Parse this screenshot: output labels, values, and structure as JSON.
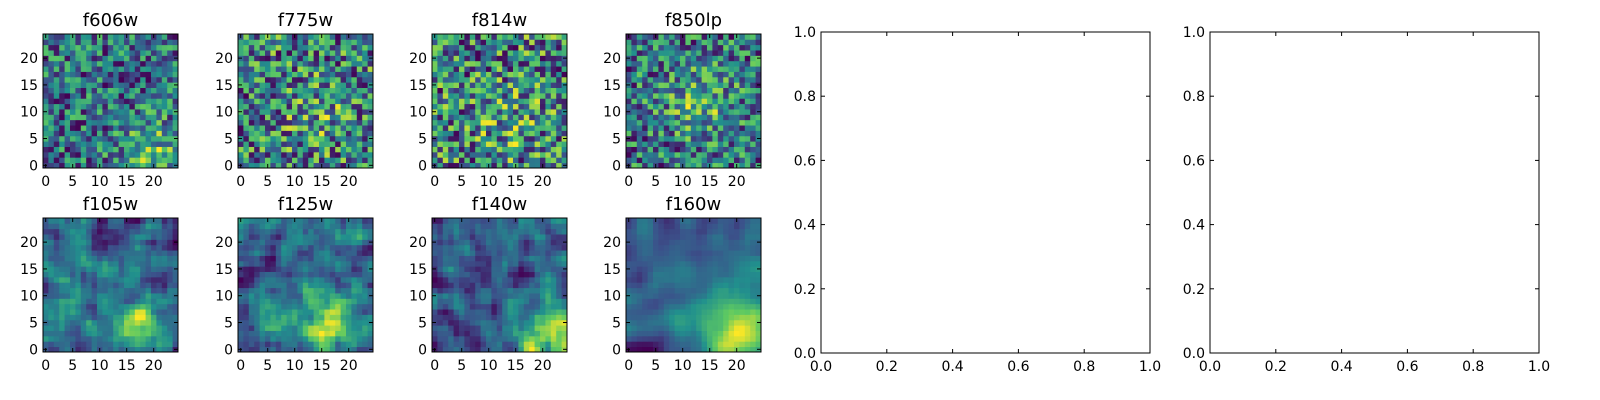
{
  "chart_data": [
    {
      "type": "heatmap",
      "title": "f606w",
      "grid_size": 25,
      "xticks": [
        0,
        5,
        10,
        15,
        20
      ],
      "yticks": [
        0,
        5,
        10,
        15,
        20
      ],
      "xlim": [
        -0.5,
        24.5
      ],
      "ylim": [
        -0.5,
        24.5
      ],
      "smoothing": 0,
      "hotspot": [
        20,
        2
      ],
      "hot_strength": 0.35,
      "seed": 11
    },
    {
      "type": "heatmap",
      "title": "f775w",
      "grid_size": 25,
      "xticks": [
        0,
        5,
        10,
        15,
        20
      ],
      "yticks": [
        0,
        5,
        10,
        15,
        20
      ],
      "xlim": [
        -0.5,
        24.5
      ],
      "ylim": [
        -0.5,
        24.5
      ],
      "smoothing": 0,
      "hotspot": [
        14,
        10
      ],
      "hot_strength": 0.15,
      "seed": 23
    },
    {
      "type": "heatmap",
      "title": "f814w",
      "grid_size": 25,
      "xticks": [
        0,
        5,
        10,
        15,
        20
      ],
      "yticks": [
        0,
        5,
        10,
        15,
        20
      ],
      "xlim": [
        -0.5,
        24.5
      ],
      "ylim": [
        -0.5,
        24.5
      ],
      "smoothing": 0,
      "hotspot": [
        14,
        8
      ],
      "hot_strength": 0.15,
      "seed": 37
    },
    {
      "type": "heatmap",
      "title": "f850lp",
      "grid_size": 25,
      "xticks": [
        0,
        5,
        10,
        15,
        20
      ],
      "yticks": [
        0,
        5,
        10,
        15,
        20
      ],
      "xlim": [
        -0.5,
        24.5
      ],
      "ylim": [
        -0.5,
        24.5
      ],
      "smoothing": 0,
      "hotspot": [
        13,
        12
      ],
      "hot_strength": 0.3,
      "seed": 41
    },
    {
      "type": "heatmap",
      "title": "f105w",
      "grid_size": 25,
      "xticks": [
        0,
        5,
        10,
        15,
        20
      ],
      "yticks": [
        0,
        5,
        10,
        15,
        20
      ],
      "xlim": [
        -0.5,
        24.5
      ],
      "ylim": [
        -0.5,
        24.5
      ],
      "smoothing": 1,
      "hotspot": [
        18,
        3
      ],
      "hot_strength": 0.45,
      "seed": 53
    },
    {
      "type": "heatmap",
      "title": "f125w",
      "grid_size": 25,
      "xticks": [
        0,
        5,
        10,
        15,
        20
      ],
      "yticks": [
        0,
        5,
        10,
        15,
        20
      ],
      "xlim": [
        -0.5,
        24.5
      ],
      "ylim": [
        -0.5,
        24.5
      ],
      "smoothing": 1,
      "hotspot": [
        16,
        4
      ],
      "hot_strength": 0.5,
      "seed": 67
    },
    {
      "type": "heatmap",
      "title": "f140w",
      "grid_size": 25,
      "xticks": [
        0,
        5,
        10,
        15,
        20
      ],
      "yticks": [
        0,
        5,
        10,
        15,
        20
      ],
      "xlim": [
        -0.5,
        24.5
      ],
      "ylim": [
        -0.5,
        24.5
      ],
      "smoothing": 1,
      "hotspot": [
        21,
        2
      ],
      "hot_strength": 0.6,
      "seed": 79
    },
    {
      "type": "heatmap",
      "title": "f160w",
      "grid_size": 25,
      "xticks": [
        0,
        5,
        10,
        15,
        20
      ],
      "yticks": [
        0,
        5,
        10,
        15,
        20
      ],
      "xlim": [
        -0.5,
        24.5
      ],
      "ylim": [
        -0.5,
        24.5
      ],
      "smoothing": 2,
      "hotspot": [
        20,
        3
      ],
      "hot_strength": 0.8,
      "seed": 97
    },
    {
      "type": "empty",
      "title": "",
      "xlim": [
        0,
        1
      ],
      "ylim": [
        0,
        1
      ],
      "xticks": [
        0.0,
        0.2,
        0.4,
        0.6,
        0.8,
        1.0
      ],
      "yticks": [
        0.0,
        0.2,
        0.4,
        0.6,
        0.8,
        1.0
      ]
    },
    {
      "type": "empty",
      "title": "",
      "xlim": [
        0,
        1
      ],
      "ylim": [
        0,
        1
      ],
      "xticks": [
        0.0,
        0.2,
        0.4,
        0.6,
        0.8,
        1.0
      ],
      "yticks": [
        0.0,
        0.2,
        0.4,
        0.6,
        0.8,
        1.0
      ]
    }
  ],
  "colormap": [
    "#440154",
    "#3b528b",
    "#21908d",
    "#5dc962",
    "#fde725"
  ]
}
